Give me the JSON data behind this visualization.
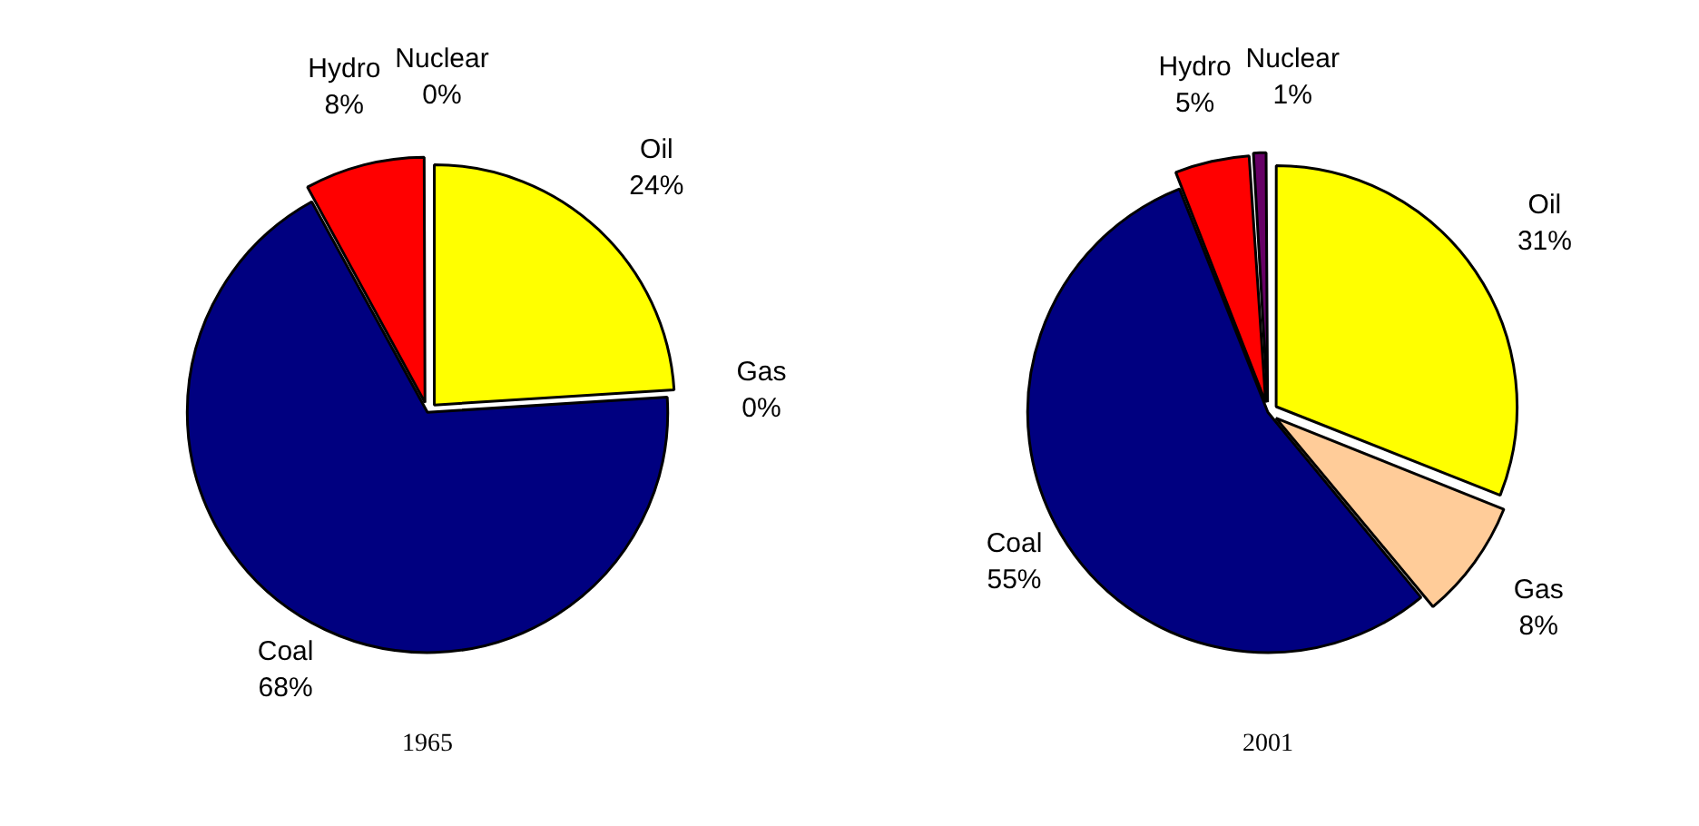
{
  "chart_data": [
    {
      "type": "pie",
      "title": "1965",
      "categories": [
        "Oil",
        "Gas",
        "Coal",
        "Hydro",
        "Nuclear"
      ],
      "values": [
        24,
        0,
        68,
        8,
        0
      ],
      "value_labels": [
        "24%",
        "0%",
        "68%",
        "8%",
        "0%"
      ],
      "colors": [
        "#ffff00",
        "#ffcc99",
        "#000080",
        "#ff0000",
        "#660066"
      ],
      "legend": false
    },
    {
      "type": "pie",
      "title": "2001",
      "categories": [
        "Oil",
        "Gas",
        "Coal",
        "Hydro",
        "Nuclear"
      ],
      "values": [
        31,
        8,
        55,
        5,
        1
      ],
      "value_labels": [
        "31%",
        "8%",
        "55%",
        "5%",
        "1%"
      ],
      "colors": [
        "#ffff00",
        "#ffcc99",
        "#000080",
        "#ff0000",
        "#660066"
      ],
      "legend": false
    }
  ]
}
